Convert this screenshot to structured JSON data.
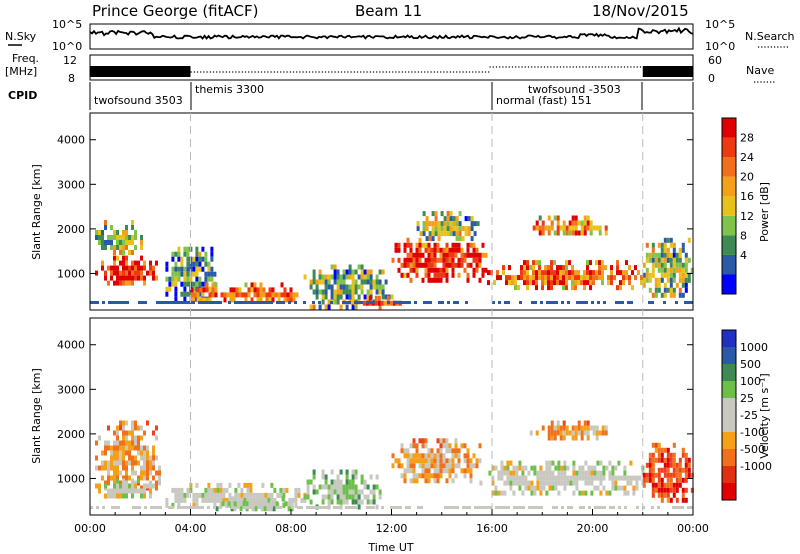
{
  "header": {
    "station": "Prince George (fitACF)",
    "beam": "Beam 11",
    "date": "18/Nov/2015"
  },
  "panels": {
    "nsky_label": "N.Sky",
    "nsky_ticks": [
      "10^5",
      "10^0"
    ],
    "nsearch_label": "N.Search",
    "nsearch_ticks": [
      "10^5",
      "10^0"
    ],
    "freq_label_1": "Freq.",
    "freq_label_2": "[MHz]",
    "freq_ticks": [
      "12",
      "8"
    ],
    "nave_label": "Nave",
    "nave_ticks": [
      "60",
      "0"
    ],
    "cpid_label": "CPID",
    "cpid_segments": [
      {
        "label": "twofsound 3503"
      },
      {
        "label": "themis 3300"
      },
      {
        "label": "normal (fast) 151"
      },
      {
        "label": "twofsound -3503"
      }
    ]
  },
  "colorbars": {
    "power": {
      "title": "Power [dB]",
      "ticks": [
        "28",
        "24",
        "20",
        "16",
        "12",
        "8",
        "4"
      ],
      "colors": [
        "#0000ff",
        "#2a59a8",
        "#3d8a52",
        "#7fc34a",
        "#e8c21a",
        "#f4a019",
        "#f2701c",
        "#ee3a12",
        "#e00000"
      ]
    },
    "velocity": {
      "title": "Velocity [m s⁻¹]",
      "ticks": [
        "1000",
        "500",
        "100",
        "25",
        "-25",
        "-100",
        "-500",
        "-1000"
      ],
      "colors": [
        "#2030c0",
        "#2a59a8",
        "#3d8a52",
        "#6cc04a",
        "#c8c8c0",
        "#c8c8c0",
        "#f4a019",
        "#f2701c",
        "#e03010",
        "#e00000"
      ]
    }
  },
  "chart_data": [
    {
      "type": "heatmap",
      "name": "power",
      "ylabel": "Slant Range [km]",
      "yticks": [
        1000,
        2000,
        3000,
        4000
      ],
      "ylim": [
        180,
        4600
      ],
      "xlim": [
        0,
        24
      ],
      "quantity": "Power [dB]",
      "scale": [
        0,
        30
      ],
      "features": [
        {
          "t0": 0.2,
          "t1": 2.6,
          "r0": 800,
          "r1": 1400,
          "v": 26
        },
        {
          "t0": 0.2,
          "t1": 2.0,
          "r0": 1500,
          "r1": 2200,
          "v": 12
        },
        {
          "t0": 3.0,
          "t1": 5.0,
          "r0": 400,
          "r1": 1600,
          "v": 8
        },
        {
          "t0": 4.0,
          "t1": 8.5,
          "r0": 380,
          "r1": 800,
          "v": 22
        },
        {
          "t0": 8.5,
          "t1": 12.0,
          "r0": 300,
          "r1": 1200,
          "v": 10
        },
        {
          "t0": 10.5,
          "t1": 12.5,
          "r0": 300,
          "r1": 500,
          "v": 24
        },
        {
          "t0": 12.0,
          "t1": 15.8,
          "r0": 900,
          "r1": 1800,
          "v": 26
        },
        {
          "t0": 13.0,
          "t1": 15.5,
          "r0": 1800,
          "r1": 2400,
          "v": 12
        },
        {
          "t0": 15.8,
          "t1": 22.0,
          "r0": 700,
          "r1": 1300,
          "v": 22
        },
        {
          "t0": 17.5,
          "t1": 20.5,
          "r0": 1900,
          "r1": 2300,
          "v": 20
        },
        {
          "t0": 22.0,
          "t1": 24.0,
          "r0": 500,
          "r1": 1800,
          "v": 12
        }
      ]
    },
    {
      "type": "heatmap",
      "name": "velocity",
      "ylabel": "Slant Range [km]",
      "xlabel": "Time UT",
      "yticks": [
        1000,
        2000,
        3000,
        4000
      ],
      "ylim": [
        180,
        4600
      ],
      "xlim": [
        0,
        24
      ],
      "xticks": [
        "00:00",
        "04:00",
        "08:00",
        "12:00",
        "16:00",
        "20:00",
        "00:00"
      ],
      "quantity": "Velocity [m s⁻¹]",
      "scale": [
        -1000,
        1000
      ],
      "features": [
        {
          "t0": 0.2,
          "t1": 2.8,
          "r0": 800,
          "r1": 2300,
          "v": -300
        },
        {
          "t0": 0.2,
          "t1": 2.5,
          "r0": 600,
          "r1": 1000,
          "v": 0
        },
        {
          "t0": 3.0,
          "t1": 8.5,
          "r0": 350,
          "r1": 900,
          "v": 0
        },
        {
          "t0": 5.0,
          "t1": 8.0,
          "r0": 300,
          "r1": 600,
          "v": 150
        },
        {
          "t0": 8.5,
          "t1": 11.5,
          "r0": 350,
          "r1": 1200,
          "v": 200
        },
        {
          "t0": 12.0,
          "t1": 15.5,
          "r0": 900,
          "r1": 1900,
          "v": -300
        },
        {
          "t0": 15.5,
          "t1": 22.0,
          "r0": 700,
          "r1": 1400,
          "v": 0
        },
        {
          "t0": 17.5,
          "t1": 20.5,
          "r0": 1900,
          "r1": 2300,
          "v": -300
        },
        {
          "t0": 22.0,
          "t1": 24.0,
          "r0": 500,
          "r1": 1800,
          "v": -700
        }
      ]
    }
  ]
}
